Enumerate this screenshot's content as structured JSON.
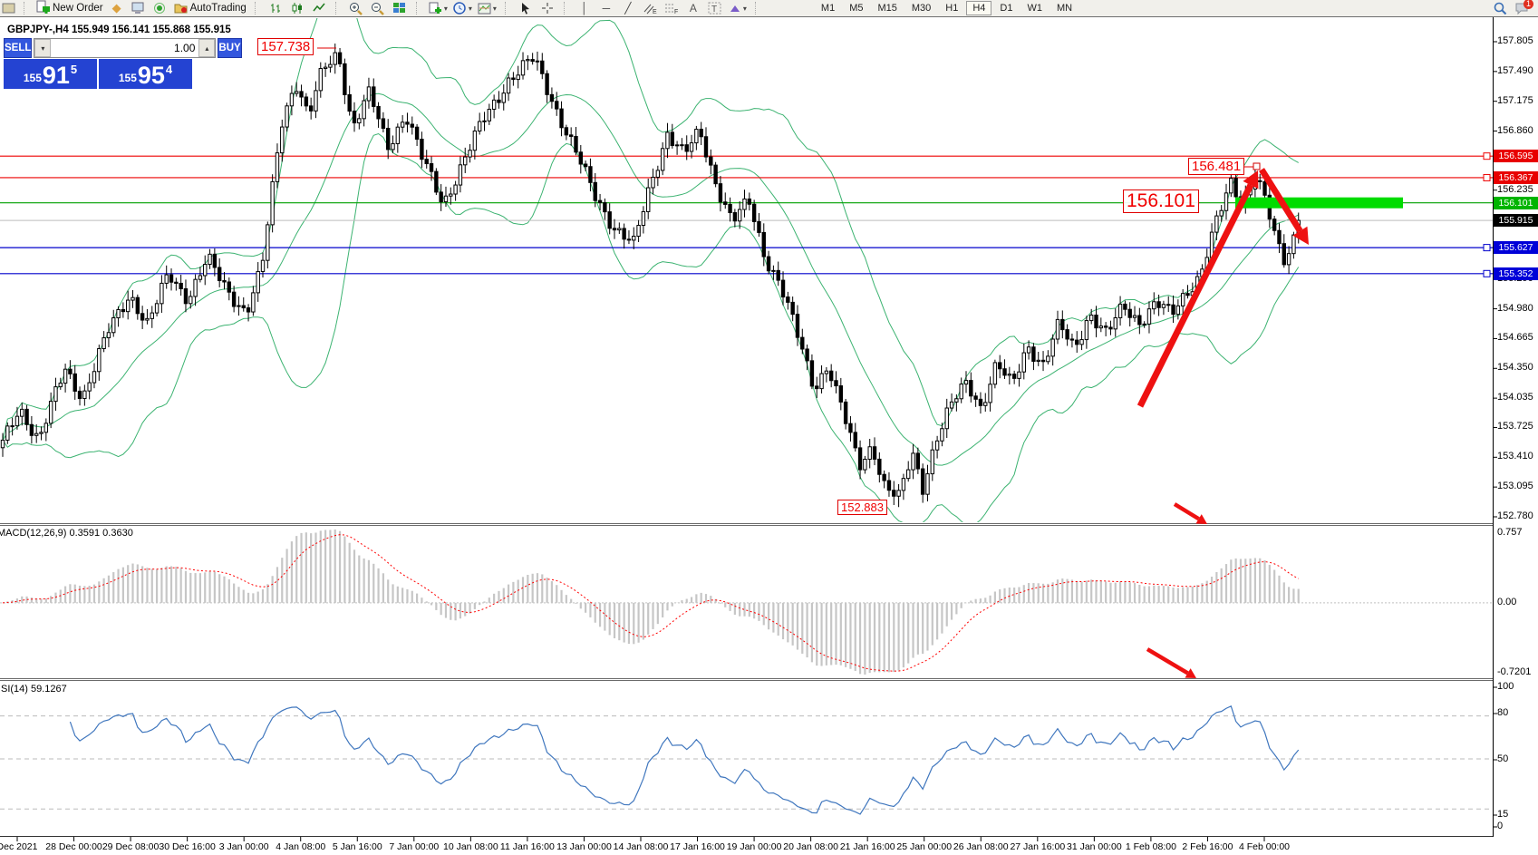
{
  "toolbar": {
    "new_order_label": "New Order",
    "autotrading_label": "AutoTrading",
    "timeframes": [
      "M1",
      "M5",
      "M15",
      "M30",
      "H1",
      "H4",
      "D1",
      "W1",
      "MN"
    ],
    "active_timeframe": "H4",
    "notification_count": "1"
  },
  "chart": {
    "title": "GBPJPY-,H4  155.949 156.141 155.868 155.915"
  },
  "trade_panel": {
    "sell_label": "SELL",
    "buy_label": "BUY",
    "volume": "1.00",
    "sell_price_prefix": "155",
    "sell_price_big": "91",
    "sell_price_sup": "5",
    "buy_price_prefix": "155",
    "buy_price_big": "95",
    "buy_price_sup": "4"
  },
  "annotations": {
    "peak_label": "157.738",
    "recent_high_label": "156.481",
    "big_level_label": "156.101",
    "trough_label": "152.883"
  },
  "indicators": {
    "macd_label": "MACD(12,26,9) 0.3591 0.3630",
    "rsi_label": "SI(14) 59.1267"
  },
  "price_badges": [
    {
      "text": "156.595",
      "color": "#e80000",
      "price": 156.595
    },
    {
      "text": "156.367",
      "color": "#e80000",
      "price": 156.367
    },
    {
      "text": "156.101",
      "color": "#00b400",
      "price": 156.101
    },
    {
      "text": "155.915",
      "color": "#000000",
      "price": 155.915
    },
    {
      "text": "155.627",
      "color": "#0000d8",
      "price": 155.627
    },
    {
      "text": "155.352",
      "color": "#0000d8",
      "price": 155.352
    }
  ],
  "chart_data": {
    "type": "candlestick",
    "symbol": "GBPJPY-",
    "timeframe": "H4",
    "ohlc_readout": {
      "open": "155.949",
      "high": "156.141",
      "low": "155.868",
      "close": "155.915"
    },
    "visible_candles": 270,
    "price_axis_ticks": [
      "157.805",
      "157.490",
      "157.175",
      "156.860",
      "156.545",
      "156.235",
      "155.290",
      "154.980",
      "154.665",
      "154.350",
      "154.035",
      "153.725",
      "153.410",
      "153.095",
      "152.780"
    ],
    "time_axis_labels": [
      "Dec 2021",
      "28 Dec 00:00",
      "29 Dec 08:00",
      "30 Dec 16:00",
      "3 Jan 00:00",
      "4 Jan 08:00",
      "5 Jan 16:00",
      "7 Jan 00:00",
      "10 Jan 08:00",
      "11 Jan 16:00",
      "13 Jan 00:00",
      "14 Jan 08:00",
      "17 Jan 16:00",
      "19 Jan 00:00",
      "20 Jan 08:00",
      "21 Jan 16:00",
      "25 Jan 00:00",
      "26 Jan 08:00",
      "27 Jan 16:00",
      "31 Jan 00:00",
      "1 Feb 08:00",
      "2 Feb 16:00",
      "4 Feb 00:00"
    ],
    "price_path": [
      [
        0.0,
        153.55
      ],
      [
        0.013,
        153.95
      ],
      [
        0.028,
        153.58
      ],
      [
        0.048,
        154.35
      ],
      [
        0.062,
        154.05
      ],
      [
        0.082,
        154.75
      ],
      [
        0.098,
        155.15
      ],
      [
        0.112,
        154.8
      ],
      [
        0.128,
        155.35
      ],
      [
        0.143,
        155.1
      ],
      [
        0.158,
        155.5
      ],
      [
        0.172,
        155.2
      ],
      [
        0.188,
        154.95
      ],
      [
        0.2,
        155.4
      ],
      [
        0.215,
        156.95
      ],
      [
        0.226,
        157.4
      ],
      [
        0.236,
        157.0
      ],
      [
        0.247,
        157.5
      ],
      [
        0.259,
        157.7
      ],
      [
        0.27,
        156.9
      ],
      [
        0.283,
        157.25
      ],
      [
        0.297,
        156.7
      ],
      [
        0.311,
        157.05
      ],
      [
        0.324,
        156.55
      ],
      [
        0.34,
        156.1
      ],
      [
        0.356,
        156.55
      ],
      [
        0.372,
        157.0
      ],
      [
        0.39,
        157.4
      ],
      [
        0.41,
        157.62
      ],
      [
        0.424,
        157.2
      ],
      [
        0.44,
        156.7
      ],
      [
        0.456,
        156.2
      ],
      [
        0.472,
        155.85
      ],
      [
        0.487,
        155.65
      ],
      [
        0.5,
        156.3
      ],
      [
        0.513,
        156.85
      ],
      [
        0.526,
        156.6
      ],
      [
        0.538,
        156.85
      ],
      [
        0.551,
        156.3
      ],
      [
        0.563,
        155.9
      ],
      [
        0.576,
        156.1
      ],
      [
        0.588,
        155.55
      ],
      [
        0.6,
        155.25
      ],
      [
        0.613,
        154.7
      ],
      [
        0.626,
        154.15
      ],
      [
        0.637,
        154.4
      ],
      [
        0.649,
        153.85
      ],
      [
        0.661,
        153.3
      ],
      [
        0.671,
        153.55
      ],
      [
        0.681,
        153.1
      ],
      [
        0.692,
        152.97
      ],
      [
        0.702,
        153.45
      ],
      [
        0.71,
        153.1
      ],
      [
        0.72,
        153.6
      ],
      [
        0.732,
        153.95
      ],
      [
        0.744,
        154.2
      ],
      [
        0.755,
        153.95
      ],
      [
        0.767,
        154.4
      ],
      [
        0.779,
        154.15
      ],
      [
        0.791,
        154.6
      ],
      [
        0.803,
        154.4
      ],
      [
        0.815,
        154.8
      ],
      [
        0.827,
        154.55
      ],
      [
        0.839,
        154.95
      ],
      [
        0.852,
        154.7
      ],
      [
        0.865,
        155.0
      ],
      [
        0.877,
        154.85
      ],
      [
        0.89,
        155.05
      ],
      [
        0.902,
        154.9
      ],
      [
        0.913,
        155.15
      ],
      [
        0.924,
        155.35
      ],
      [
        0.937,
        155.9
      ],
      [
        0.948,
        156.3
      ],
      [
        0.957,
        156.1
      ],
      [
        0.966,
        156.42
      ],
      [
        0.974,
        156.15
      ],
      [
        0.982,
        155.7
      ],
      [
        0.99,
        155.45
      ],
      [
        1.0,
        155.92
      ]
    ],
    "key_points": {
      "peak": 157.738,
      "trough": 152.883,
      "recent_high": 156.481,
      "last_close": 155.915
    },
    "levels": [
      {
        "price": 156.595,
        "color": "#ee0000"
      },
      {
        "price": 156.367,
        "color": "#ee0000"
      },
      {
        "price": 156.101,
        "color": "#00a000"
      },
      {
        "price": 155.627,
        "color": "#0000cc"
      },
      {
        "price": 155.352,
        "color": "#0000cc"
      }
    ],
    "current_price_line": {
      "price": 155.915,
      "color": "#bdbdbd"
    },
    "highlight_zone": {
      "price": 156.101,
      "color": "#00dc00"
    },
    "bollinger": {
      "period": 20,
      "deviation": 2,
      "color": "#3CB371"
    },
    "macd": {
      "fast": 12,
      "slow": 26,
      "signal": 9,
      "axis_max": "0.757",
      "axis_zero": "0.00",
      "axis_min": "-0.7201",
      "hist_color": "#c6c6c6",
      "signal_color": "#ff0000"
    },
    "rsi": {
      "period": 14,
      "value": "59.1267",
      "levels": [
        80,
        50,
        15
      ],
      "axis_labels": [
        "100",
        "80",
        "50",
        "15",
        "0"
      ],
      "color": "#4077be"
    }
  }
}
